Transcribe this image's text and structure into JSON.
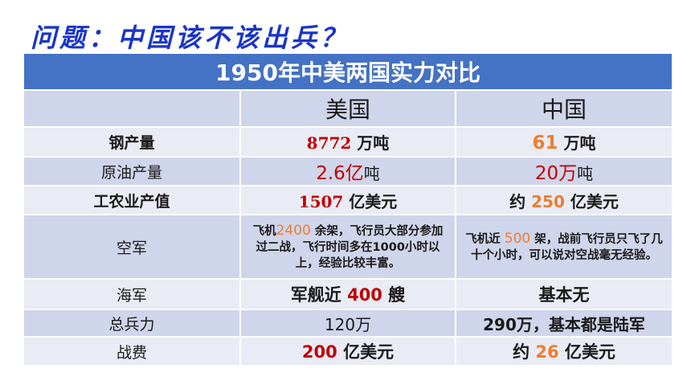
{
  "slide": {
    "title": "问题：中国该不该出兵？"
  },
  "table": {
    "heading": "1950年中美两国实力对比",
    "columns": {
      "us": "美国",
      "cn": "中国"
    },
    "steel": {
      "label": "钢产量",
      "us_value": "8772",
      "us_unit": " 万吨",
      "cn_value": "61",
      "cn_unit": " 万吨"
    },
    "oil": {
      "label": "原油产量",
      "us_value": "2.6亿",
      "us_unit": "吨",
      "cn_value": "20万",
      "cn_unit": "吨"
    },
    "industry": {
      "label": "工农业产值",
      "us_value": "1507",
      "us_unit": " 亿美元",
      "cn_prefix": "约 ",
      "cn_value": "250",
      "cn_unit": " 亿美元"
    },
    "airforce": {
      "label": "空军",
      "us_pre": "飞机",
      "us_value": "2400",
      "us_post": " 余架，飞行员大部分参加过二战，飞行时间多在1000小时以上，经验比较丰富。",
      "cn_pre": "飞机近 ",
      "cn_value": "500",
      "cn_post": " 架，战前飞行员只飞了几十个小时，可以说对空战毫无经验。"
    },
    "navy": {
      "label": "海军",
      "us_pre": "军舰近 ",
      "us_value": "400",
      "us_post": " 艘",
      "cn_value": "基本无"
    },
    "troops": {
      "label": "总兵力",
      "us_value": "120万",
      "cn_value": "290万，基本都是陆军"
    },
    "cost": {
      "label": "战费",
      "us_value": "200",
      "us_unit": " 亿美元",
      "cn_prefix": "约 ",
      "cn_value": "26",
      "cn_unit": " 亿美元"
    }
  },
  "colors": {
    "header_bg": "#4472c4",
    "row_dark": "#cfd5ea",
    "row_light": "#e9ebf5",
    "title": "#1a35c8",
    "red": "#c00000",
    "orange": "#ed7d31"
  }
}
